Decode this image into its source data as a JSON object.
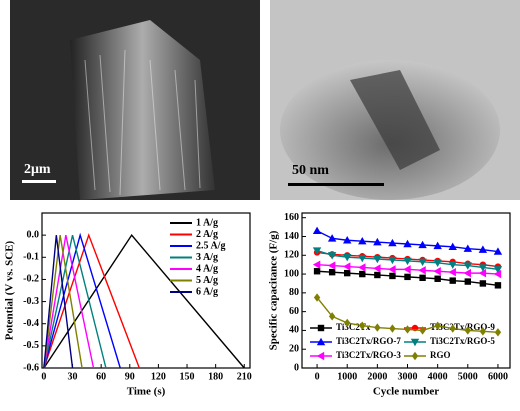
{
  "images": [
    {
      "scale_bar": "2μm"
    },
    {
      "scale_bar": "50 nm"
    }
  ],
  "chart_data": [
    {
      "type": "line",
      "xlabel": "Time (s)",
      "ylabel": "Potential (V vs. SCE)",
      "xlim": [
        -2,
        216
      ],
      "ylim": [
        -0.6,
        0.1
      ],
      "xticks": [
        0,
        30,
        60,
        90,
        120,
        150,
        180,
        210
      ],
      "yticks": [
        -0.6,
        -0.5,
        -0.4,
        -0.3,
        -0.2,
        -0.1,
        {
          "value": 0,
          "label": "0.0"
        }
      ],
      "legend": "upper right",
      "series": [
        {
          "name": "1 A/g",
          "color": "#000000",
          "x": [
            0,
            92,
            210
          ],
          "values": [
            -0.6,
            0,
            -0.6
          ]
        },
        {
          "name": "2 A/g",
          "color": "#ff0000",
          "x": [
            0,
            47,
            100
          ],
          "values": [
            -0.6,
            0,
            -0.6
          ]
        },
        {
          "name": "2.5 A/g",
          "color": "#0000ff",
          "x": [
            0,
            38,
            80
          ],
          "values": [
            -0.6,
            0,
            -0.6
          ]
        },
        {
          "name": "3 A/g",
          "color": "#008080",
          "x": [
            0,
            30,
            65
          ],
          "values": [
            -0.6,
            0,
            -0.6
          ]
        },
        {
          "name": "4 A/g",
          "color": "#ff00ff",
          "x": [
            0,
            23,
            52
          ],
          "values": [
            -0.6,
            0,
            -0.6
          ]
        },
        {
          "name": "5 A/g",
          "color": "#808000",
          "x": [
            0,
            17,
            40
          ],
          "values": [
            -0.6,
            0,
            -0.6
          ]
        },
        {
          "name": "6 A/g",
          "color": "#000080",
          "x": [
            0,
            13,
            30
          ],
          "values": [
            -0.6,
            0,
            -0.6
          ]
        }
      ]
    },
    {
      "type": "line",
      "xlabel": "Cycle number",
      "ylabel": "Specific capacitance (F/g)",
      "xlim": [
        -500,
        6400
      ],
      "ylim": [
        0,
        165
      ],
      "xticks": [
        0,
        1000,
        2000,
        3000,
        4000,
        5000,
        6000
      ],
      "yticks": [
        0,
        20,
        40,
        60,
        80,
        100,
        120,
        140,
        160
      ],
      "legend": "lower",
      "x": [
        0,
        500,
        1000,
        1500,
        2000,
        2500,
        3000,
        3500,
        4000,
        4500,
        5000,
        5500,
        6000
      ],
      "series": [
        {
          "name": "Ti3C2Tx",
          "color": "#000000",
          "marker": "square",
          "values": [
            103,
            102,
            101,
            100,
            99,
            98,
            97,
            96,
            95,
            93,
            92,
            90,
            88
          ]
        },
        {
          "name": "Ti3C2Tx/RGO-9",
          "color": "#ff0000",
          "marker": "circle",
          "values": [
            123,
            121,
            120,
            119,
            118,
            117,
            116,
            115,
            114,
            113,
            111,
            110,
            108
          ]
        },
        {
          "name": "Ti3C2Tx/RGO-7",
          "color": "#0000ff",
          "marker": "triangle-up",
          "values": [
            146,
            138,
            136,
            135,
            134,
            133,
            132,
            131,
            130,
            129,
            127,
            126,
            124
          ]
        },
        {
          "name": "Ti3C2Tx/RGO-5",
          "color": "#008080",
          "marker": "triangle-down",
          "values": [
            125,
            120,
            118,
            117,
            116,
            115,
            114,
            113,
            112,
            110,
            109,
            107,
            105
          ]
        },
        {
          "name": "Ti3C2Tx/RGO-3",
          "color": "#ff00ff",
          "marker": "triangle-left",
          "values": [
            110,
            109,
            108,
            107,
            106,
            105,
            105,
            104,
            103,
            102,
            101,
            101,
            100
          ]
        },
        {
          "name": "RGO",
          "color": "#808000",
          "marker": "diamond",
          "values": [
            75,
            55,
            48,
            45,
            43,
            42,
            41,
            40,
            45,
            42,
            40,
            39,
            38
          ]
        }
      ]
    }
  ]
}
